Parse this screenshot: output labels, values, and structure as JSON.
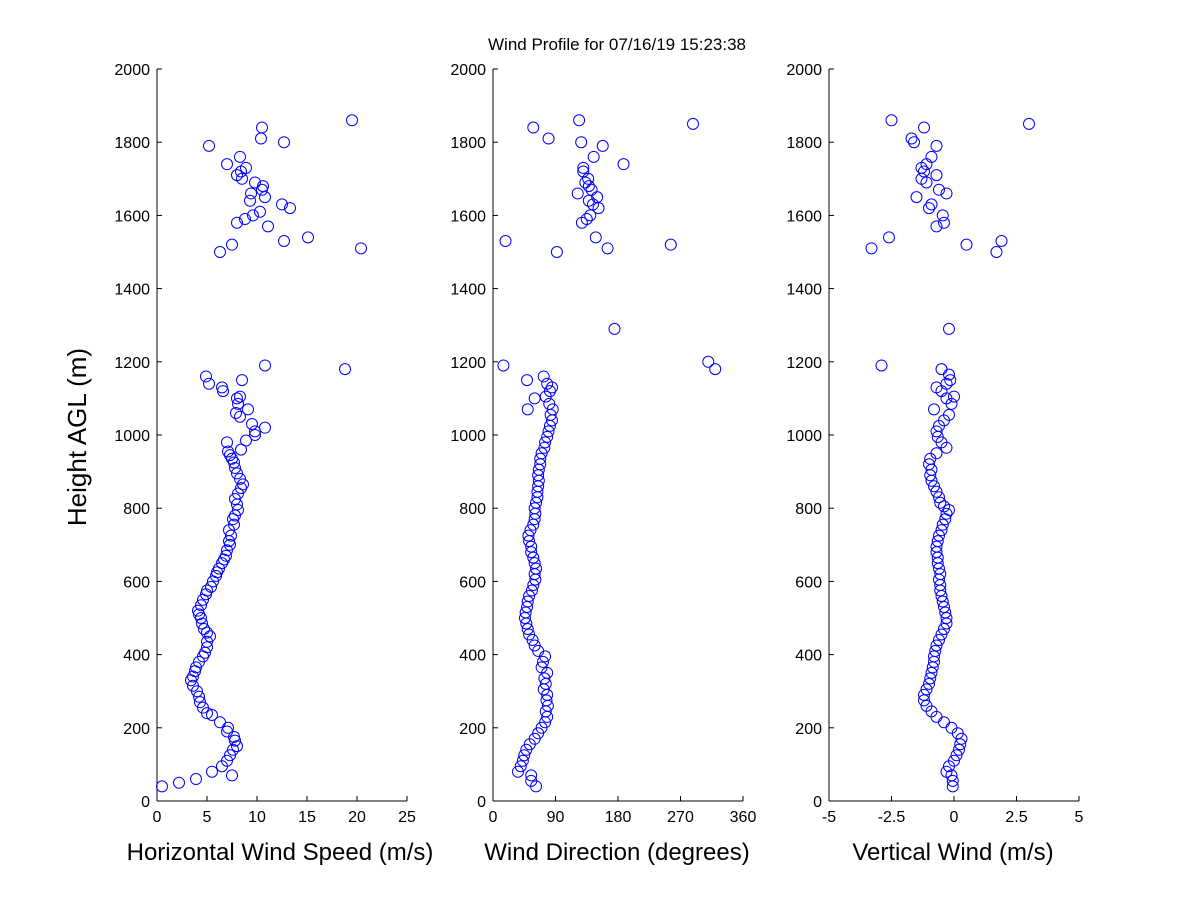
{
  "title": "Wind Profile for  07/16/19 15:23:38",
  "ylabel": "Height AGL (m)",
  "chart_data": [
    {
      "type": "scatter",
      "xlabel": "Horizontal Wind Speed (m/s)",
      "xlim": [
        0,
        25
      ],
      "xticks": [
        0,
        5,
        10,
        15,
        20,
        25
      ],
      "xtick_labels": [
        "0",
        "5",
        "10",
        "15",
        "20",
        "25"
      ],
      "ylim": [
        0,
        2000
      ],
      "yticks": [
        0,
        200,
        400,
        600,
        800,
        1000,
        1200,
        1400,
        1600,
        1800,
        2000
      ],
      "ytick_labels": [
        "0",
        "200",
        "400",
        "600",
        "800",
        "1000",
        "1200",
        "1400",
        "1600",
        "1800",
        "2000"
      ],
      "marker_color": "#0000ff",
      "points": [
        [
          0.5,
          40
        ],
        [
          2.2,
          50
        ],
        [
          3.9,
          60
        ],
        [
          7.5,
          70
        ],
        [
          5.5,
          80
        ],
        [
          6.5,
          95
        ],
        [
          7.0,
          110
        ],
        [
          7.3,
          125
        ],
        [
          7.6,
          140
        ],
        [
          8.0,
          150
        ],
        [
          7.8,
          165
        ],
        [
          7.7,
          175
        ],
        [
          7.0,
          190
        ],
        [
          7.1,
          200
        ],
        [
          6.3,
          215
        ],
        [
          5.5,
          235
        ],
        [
          5.0,
          240
        ],
        [
          4.6,
          255
        ],
        [
          4.3,
          270
        ],
        [
          4.2,
          285
        ],
        [
          4.0,
          300
        ],
        [
          3.6,
          315
        ],
        [
          3.4,
          330
        ],
        [
          3.6,
          340
        ],
        [
          3.8,
          355
        ],
        [
          3.9,
          365
        ],
        [
          4.2,
          380
        ],
        [
          4.6,
          395
        ],
        [
          4.8,
          405
        ],
        [
          5.0,
          420
        ],
        [
          5.0,
          435
        ],
        [
          5.3,
          450
        ],
        [
          5.0,
          460
        ],
        [
          4.7,
          470
        ],
        [
          4.5,
          485
        ],
        [
          4.4,
          500
        ],
        [
          4.2,
          510
        ],
        [
          4.1,
          520
        ],
        [
          4.4,
          535
        ],
        [
          4.6,
          550
        ],
        [
          4.9,
          565
        ],
        [
          5.0,
          575
        ],
        [
          5.4,
          585
        ],
        [
          5.6,
          600
        ],
        [
          5.9,
          615
        ],
        [
          6.0,
          625
        ],
        [
          6.2,
          635
        ],
        [
          6.5,
          650
        ],
        [
          6.7,
          660
        ],
        [
          6.9,
          670
        ],
        [
          7.0,
          685
        ],
        [
          7.3,
          700
        ],
        [
          7.2,
          710
        ],
        [
          7.4,
          725
        ],
        [
          7.2,
          740
        ],
        [
          7.7,
          755
        ],
        [
          7.6,
          770
        ],
        [
          7.8,
          780
        ],
        [
          8.1,
          795
        ],
        [
          8.0,
          810
        ],
        [
          7.8,
          825
        ],
        [
          8.1,
          840
        ],
        [
          8.4,
          855
        ],
        [
          8.6,
          865
        ],
        [
          8.3,
          880
        ],
        [
          8.0,
          895
        ],
        [
          7.8,
          910
        ],
        [
          7.7,
          925
        ],
        [
          7.5,
          935
        ],
        [
          7.3,
          945
        ],
        [
          7.1,
          955
        ],
        [
          8.4,
          960
        ],
        [
          7.0,
          980
        ],
        [
          8.9,
          985
        ],
        [
          9.8,
          1000
        ],
        [
          9.8,
          1010
        ],
        [
          10.8,
          1020
        ],
        [
          9.5,
          1030
        ],
        [
          8.3,
          1050
        ],
        [
          7.9,
          1060
        ],
        [
          9.1,
          1070
        ],
        [
          8.1,
          1085
        ],
        [
          8.0,
          1100
        ],
        [
          8.3,
          1105
        ],
        [
          6.6,
          1120
        ],
        [
          6.5,
          1130
        ],
        [
          5.2,
          1140
        ],
        [
          8.5,
          1150
        ],
        [
          4.9,
          1160
        ],
        [
          18.8,
          1180
        ],
        [
          10.8,
          1190
        ],
        [
          6.3,
          1500
        ],
        [
          20.4,
          1510
        ],
        [
          7.5,
          1520
        ],
        [
          12.7,
          1530
        ],
        [
          15.1,
          1540
        ],
        [
          11.1,
          1570
        ],
        [
          8.0,
          1580
        ],
        [
          8.8,
          1590
        ],
        [
          9.6,
          1600
        ],
        [
          10.3,
          1610
        ],
        [
          13.3,
          1620
        ],
        [
          12.5,
          1630
        ],
        [
          9.3,
          1640
        ],
        [
          10.8,
          1650
        ],
        [
          9.4,
          1660
        ],
        [
          10.5,
          1670
        ],
        [
          10.6,
          1680
        ],
        [
          9.8,
          1690
        ],
        [
          8.5,
          1700
        ],
        [
          8.0,
          1710
        ],
        [
          8.4,
          1720
        ],
        [
          8.9,
          1730
        ],
        [
          7.0,
          1740
        ],
        [
          8.3,
          1760
        ],
        [
          5.2,
          1790
        ],
        [
          12.7,
          1800
        ],
        [
          10.4,
          1810
        ],
        [
          10.5,
          1840
        ],
        [
          19.5,
          1860
        ]
      ]
    },
    {
      "type": "scatter",
      "xlabel": "Wind Direction (degrees)",
      "xlim": [
        0,
        360
      ],
      "xticks": [
        0,
        90,
        180,
        270,
        360
      ],
      "xtick_labels": [
        "0",
        "90",
        "180",
        "270",
        "360"
      ],
      "ylim": [
        0,
        2000
      ],
      "yticks": [
        0,
        200,
        400,
        600,
        800,
        1000,
        1200,
        1400,
        1600,
        1800,
        2000
      ],
      "ytick_labels": [
        "0",
        "200",
        "400",
        "600",
        "800",
        "1000",
        "1200",
        "1400",
        "1600",
        "1800",
        "2000"
      ],
      "marker_color": "#0000ff",
      "points": [
        [
          62,
          40
        ],
        [
          55,
          55
        ],
        [
          55,
          70
        ],
        [
          36,
          80
        ],
        [
          40,
          95
        ],
        [
          43,
          110
        ],
        [
          45,
          125
        ],
        [
          48,
          140
        ],
        [
          53,
          155
        ],
        [
          60,
          170
        ],
        [
          65,
          185
        ],
        [
          70,
          200
        ],
        [
          75,
          215
        ],
        [
          78,
          230
        ],
        [
          76,
          245
        ],
        [
          79,
          260
        ],
        [
          77,
          275
        ],
        [
          78,
          290
        ],
        [
          73,
          305
        ],
        [
          76,
          320
        ],
        [
          74,
          335
        ],
        [
          78,
          350
        ],
        [
          70,
          365
        ],
        [
          72,
          380
        ],
        [
          75,
          395
        ],
        [
          65,
          410
        ],
        [
          60,
          425
        ],
        [
          57,
          440
        ],
        [
          52,
          455
        ],
        [
          50,
          470
        ],
        [
          48,
          485
        ],
        [
          46,
          500
        ],
        [
          47,
          515
        ],
        [
          49,
          530
        ],
        [
          50,
          545
        ],
        [
          52,
          560
        ],
        [
          56,
          575
        ],
        [
          58,
          590
        ],
        [
          61,
          605
        ],
        [
          60,
          620
        ],
        [
          62,
          635
        ],
        [
          60,
          650
        ],
        [
          58,
          665
        ],
        [
          55,
          680
        ],
        [
          55,
          695
        ],
        [
          52,
          710
        ],
        [
          51,
          725
        ],
        [
          54,
          740
        ],
        [
          58,
          755
        ],
        [
          60,
          770
        ],
        [
          61,
          785
        ],
        [
          60,
          800
        ],
        [
          62,
          815
        ],
        [
          64,
          830
        ],
        [
          64,
          845
        ],
        [
          65,
          860
        ],
        [
          66,
          875
        ],
        [
          65,
          890
        ],
        [
          66,
          905
        ],
        [
          68,
          920
        ],
        [
          68,
          935
        ],
        [
          70,
          950
        ],
        [
          74,
          965
        ],
        [
          75,
          980
        ],
        [
          78,
          995
        ],
        [
          80,
          1010
        ],
        [
          82,
          1025
        ],
        [
          85,
          1040
        ],
        [
          83,
          1055
        ],
        [
          86,
          1070
        ],
        [
          50,
          1070
        ],
        [
          81,
          1085
        ],
        [
          60,
          1100
        ],
        [
          76,
          1105
        ],
        [
          82,
          1120
        ],
        [
          85,
          1130
        ],
        [
          78,
          1140
        ],
        [
          49,
          1150
        ],
        [
          73,
          1160
        ],
        [
          320,
          1180
        ],
        [
          15,
          1190
        ],
        [
          310,
          1200
        ],
        [
          175,
          1290
        ],
        [
          92,
          1500
        ],
        [
          165,
          1510
        ],
        [
          256,
          1520
        ],
        [
          18,
          1530
        ],
        [
          148,
          1540
        ],
        [
          128,
          1580
        ],
        [
          135,
          1590
        ],
        [
          140,
          1600
        ],
        [
          152,
          1620
        ],
        [
          144,
          1630
        ],
        [
          138,
          1640
        ],
        [
          150,
          1650
        ],
        [
          122,
          1660
        ],
        [
          142,
          1670
        ],
        [
          138,
          1680
        ],
        [
          133,
          1690
        ],
        [
          137,
          1700
        ],
        [
          130,
          1720
        ],
        [
          130,
          1730
        ],
        [
          188,
          1740
        ],
        [
          145,
          1760
        ],
        [
          158,
          1790
        ],
        [
          127,
          1800
        ],
        [
          80,
          1810
        ],
        [
          58,
          1840
        ],
        [
          288,
          1850
        ],
        [
          124,
          1860
        ]
      ]
    },
    {
      "type": "scatter",
      "xlabel": "Vertical Wind (m/s)",
      "xlim": [
        -5,
        5
      ],
      "xticks": [
        -5,
        -2.5,
        0,
        2.5,
        5
      ],
      "xtick_labels": [
        "-5",
        "-2.5",
        "0",
        "2.5",
        "5"
      ],
      "ylim": [
        0,
        2000
      ],
      "yticks": [
        0,
        200,
        400,
        600,
        800,
        1000,
        1200,
        1400,
        1600,
        1800,
        2000
      ],
      "ytick_labels": [
        "0",
        "200",
        "400",
        "600",
        "800",
        "1000",
        "1200",
        "1400",
        "1600",
        "1800",
        "2000"
      ],
      "marker_color": "#0000ff",
      "points": [
        [
          -0.05,
          40
        ],
        [
          -0.05,
          55
        ],
        [
          -0.1,
          70
        ],
        [
          -0.3,
          80
        ],
        [
          -0.2,
          95
        ],
        [
          0.0,
          110
        ],
        [
          0.1,
          125
        ],
        [
          0.2,
          140
        ],
        [
          0.25,
          155
        ],
        [
          0.3,
          170
        ],
        [
          0.15,
          185
        ],
        [
          -0.1,
          200
        ],
        [
          -0.4,
          215
        ],
        [
          -0.7,
          230
        ],
        [
          -0.9,
          245
        ],
        [
          -1.1,
          260
        ],
        [
          -1.2,
          275
        ],
        [
          -1.2,
          290
        ],
        [
          -1.1,
          305
        ],
        [
          -1.0,
          320
        ],
        [
          -0.95,
          335
        ],
        [
          -0.9,
          350
        ],
        [
          -0.85,
          365
        ],
        [
          -0.8,
          380
        ],
        [
          -0.8,
          395
        ],
        [
          -0.75,
          410
        ],
        [
          -0.7,
          425
        ],
        [
          -0.6,
          440
        ],
        [
          -0.5,
          455
        ],
        [
          -0.4,
          470
        ],
        [
          -0.3,
          485
        ],
        [
          -0.3,
          500
        ],
        [
          -0.35,
          515
        ],
        [
          -0.4,
          530
        ],
        [
          -0.45,
          545
        ],
        [
          -0.5,
          560
        ],
        [
          -0.55,
          575
        ],
        [
          -0.55,
          590
        ],
        [
          -0.6,
          605
        ],
        [
          -0.55,
          620
        ],
        [
          -0.6,
          635
        ],
        [
          -0.65,
          650
        ],
        [
          -0.65,
          665
        ],
        [
          -0.7,
          680
        ],
        [
          -0.7,
          695
        ],
        [
          -0.65,
          710
        ],
        [
          -0.6,
          725
        ],
        [
          -0.5,
          740
        ],
        [
          -0.45,
          755
        ],
        [
          -0.35,
          770
        ],
        [
          -0.3,
          785
        ],
        [
          -0.2,
          795
        ],
        [
          -0.4,
          805
        ],
        [
          -0.55,
          815
        ],
        [
          -0.6,
          830
        ],
        [
          -0.7,
          845
        ],
        [
          -0.8,
          860
        ],
        [
          -0.9,
          875
        ],
        [
          -0.95,
          890
        ],
        [
          -0.9,
          905
        ],
        [
          -1.0,
          920
        ],
        [
          -0.95,
          935
        ],
        [
          -0.7,
          950
        ],
        [
          -0.3,
          965
        ],
        [
          -0.5,
          980
        ],
        [
          -0.65,
          995
        ],
        [
          -0.7,
          1010
        ],
        [
          -0.6,
          1025
        ],
        [
          -0.4,
          1040
        ],
        [
          -0.2,
          1055
        ],
        [
          -0.8,
          1070
        ],
        [
          -0.1,
          1085
        ],
        [
          -0.3,
          1100
        ],
        [
          0.0,
          1105
        ],
        [
          -0.5,
          1120
        ],
        [
          -0.7,
          1130
        ],
        [
          -0.3,
          1140
        ],
        [
          -0.15,
          1150
        ],
        [
          -0.2,
          1165
        ],
        [
          -0.5,
          1180
        ],
        [
          -2.9,
          1190
        ],
        [
          -0.2,
          1290
        ],
        [
          -3.3,
          1510
        ],
        [
          0.5,
          1520
        ],
        [
          1.9,
          1530
        ],
        [
          -2.6,
          1540
        ],
        [
          1.7,
          1500
        ],
        [
          -0.7,
          1570
        ],
        [
          -0.4,
          1580
        ],
        [
          -0.45,
          1600
        ],
        [
          -1.0,
          1620
        ],
        [
          -0.9,
          1630
        ],
        [
          -0.3,
          1660
        ],
        [
          -1.5,
          1650
        ],
        [
          -0.6,
          1670
        ],
        [
          -1.1,
          1690
        ],
        [
          -1.3,
          1700
        ],
        [
          -1.2,
          1720
        ],
        [
          -1.3,
          1730
        ],
        [
          -0.7,
          1710
        ],
        [
          -1.1,
          1740
        ],
        [
          -0.9,
          1760
        ],
        [
          -0.7,
          1790
        ],
        [
          -1.6,
          1800
        ],
        [
          -1.7,
          1810
        ],
        [
          -1.2,
          1840
        ],
        [
          3.0,
          1850
        ],
        [
          -2.5,
          1860
        ]
      ]
    }
  ]
}
